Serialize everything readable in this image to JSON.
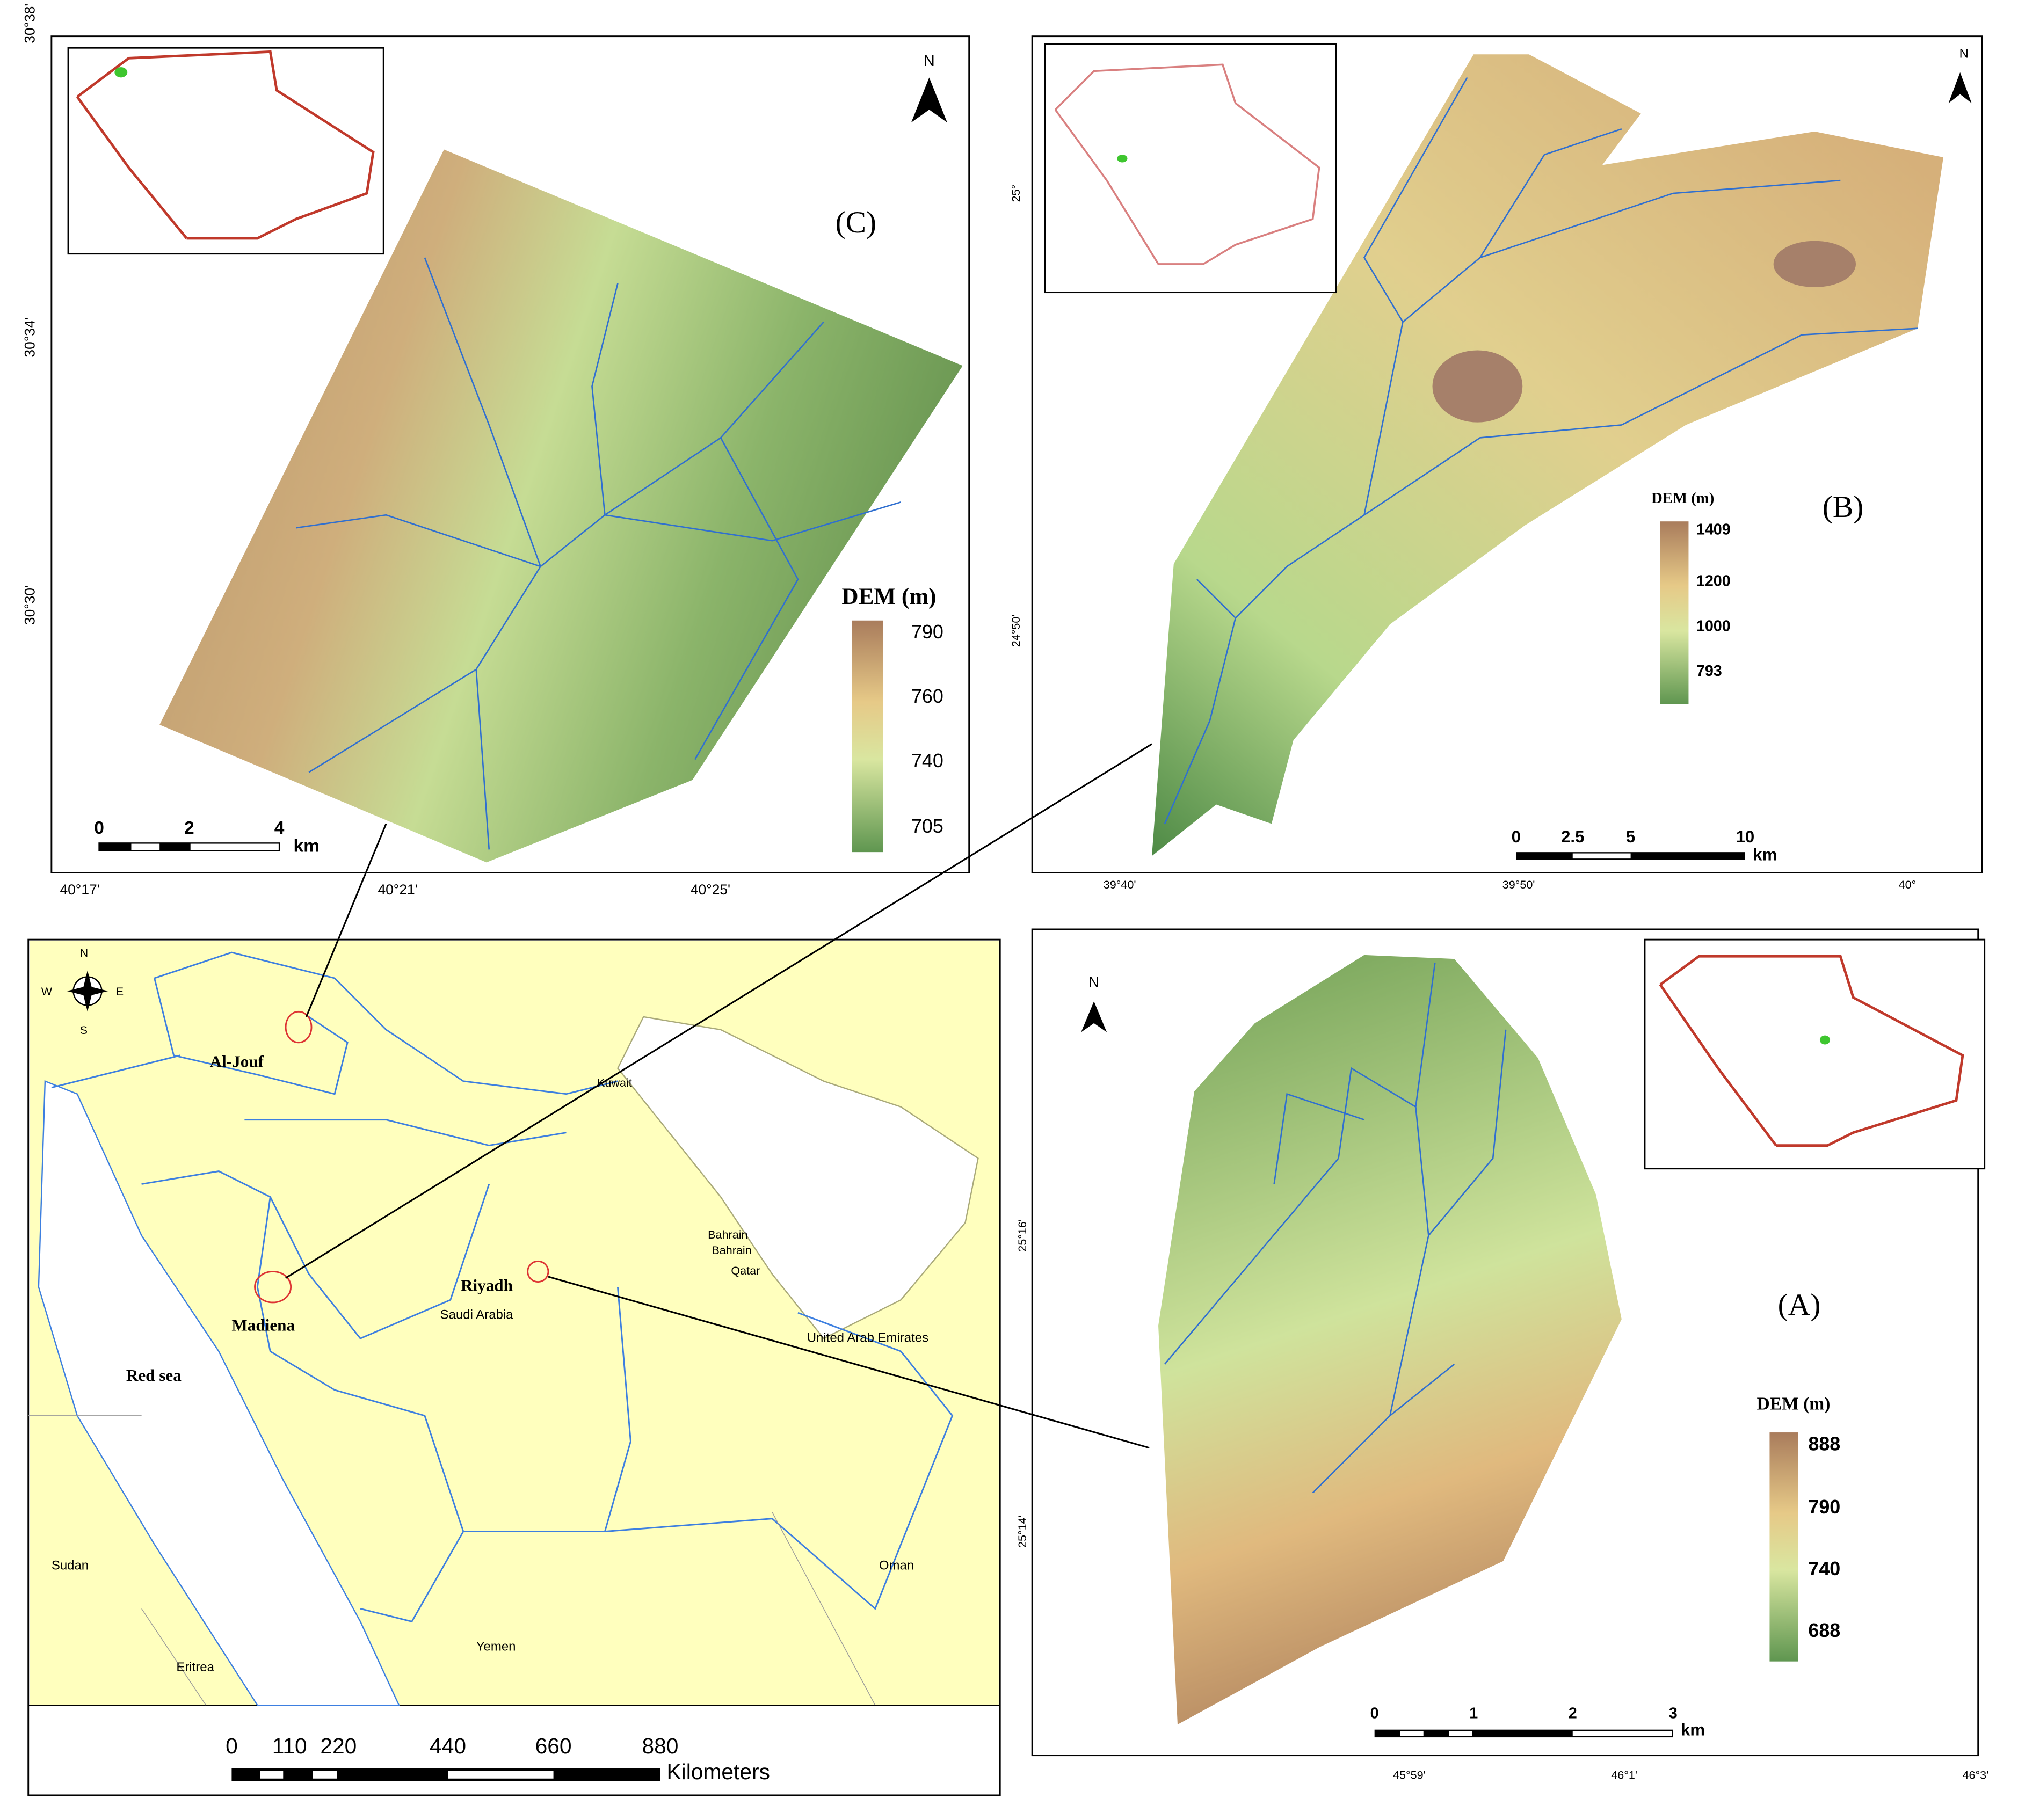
{
  "panel_c": {
    "label": "(C)",
    "north": "N",
    "legend_title": "DEM (m)",
    "legend_values": [
      "790",
      "760",
      "740",
      "705"
    ],
    "scale_labels": [
      "0",
      "2",
      "4"
    ],
    "scale_unit": "km",
    "lat_labels": [
      "30°38'",
      "30°34'",
      "30°30'"
    ],
    "lon_labels": [
      "40°17'",
      "40°21'",
      "40°25'"
    ]
  },
  "panel_b": {
    "label": "(B)",
    "north": "N",
    "legend_title": "DEM (m)",
    "legend_values": [
      "1409",
      "1200",
      "1000",
      "793"
    ],
    "scale_labels": [
      "0",
      "2.5",
      "5",
      "10"
    ],
    "scale_unit": "km",
    "lat_labels": [
      "25°",
      "24°50'"
    ],
    "lon_labels": [
      "39°40'",
      "39°50'",
      "40°"
    ]
  },
  "panel_a": {
    "label": "(A)",
    "north": "N",
    "legend_title": "DEM (m)",
    "legend_values": [
      "888",
      "790",
      "740",
      "688"
    ],
    "scale_labels": [
      "0",
      "1",
      "2",
      "3"
    ],
    "scale_unit": "km",
    "lat_labels": [
      "25°16'",
      "25°14'"
    ],
    "lon_labels": [
      "45°59'",
      "46°1'",
      "46°3'"
    ]
  },
  "main_map": {
    "compass": [
      "N",
      "W",
      "E",
      "S"
    ],
    "places": [
      "Al-Jouf",
      "Kuwait",
      "Bahrain",
      "Bahrain",
      "Qatar",
      "Madiena",
      "Riyadh",
      "Saudi Arabia",
      "United Arab Emirates",
      "Red sea",
      "Sudan",
      "Oman",
      "Eritrea",
      "Yemen"
    ],
    "scale_labels": [
      "0",
      "110",
      "220",
      "440",
      "660",
      "880"
    ],
    "scale_unit": "Kilometers"
  }
}
